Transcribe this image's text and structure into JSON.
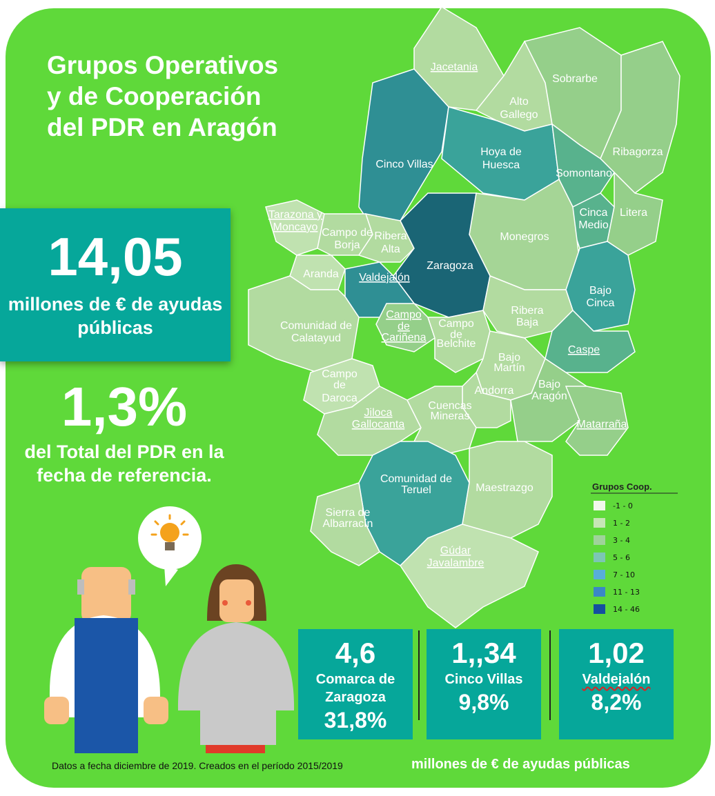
{
  "title": "Grupos Operativos y de Cooperación del PDR en Aragón",
  "stat_box": {
    "value": "14,05",
    "caption": "millones de € de ayudas públicas"
  },
  "pct_block": {
    "value": "1,3%",
    "caption": "del Total del PDR en la fecha de referencia."
  },
  "regions": [
    {
      "label": "Jacetania",
      "fill": "#b2dba0",
      "underline": true
    },
    {
      "label": "Alto Gallego",
      "fill": "#b2dba0"
    },
    {
      "label": "Sobrarbe",
      "fill": "#95cf8a"
    },
    {
      "label": "Ribagorza",
      "fill": "#95cf8a"
    },
    {
      "label": "Cinco Villas",
      "fill": "#2f8f94"
    },
    {
      "label": "Hoya de Huesca",
      "fill": "#3aa39a"
    },
    {
      "label": "Somontano",
      "fill": "#58b28d"
    },
    {
      "label": "Tarazona y Moncayo",
      "fill": "#c0e2b0",
      "underline": true
    },
    {
      "label": "Campo de Borja",
      "fill": "#b2dba0"
    },
    {
      "label": "Ribera Alta",
      "fill": "#b2dba0"
    },
    {
      "label": "Cinca Medio",
      "fill": "#58b28d"
    },
    {
      "label": "Litera",
      "fill": "#95cf8a"
    },
    {
      "label": "Monegros",
      "fill": "#a5d596"
    },
    {
      "label": "Zaragoza",
      "fill": "#1a6575"
    },
    {
      "label": "Aranda",
      "fill": "#c0e2b0"
    },
    {
      "label": "Valdejalón",
      "fill": "#2f8f94",
      "underline": true
    },
    {
      "label": "Bajo Cinca",
      "fill": "#3aa39a"
    },
    {
      "label": "Comunidad de Calatayud",
      "fill": "#b2dba0"
    },
    {
      "label": "Campo de Cariñena",
      "fill": "#95cf8a",
      "underline": true
    },
    {
      "label": "Campo de Belchite",
      "fill": "#b2dba0"
    },
    {
      "label": "Ribera Baja",
      "fill": "#b2dba0"
    },
    {
      "label": "Caspe",
      "fill": "#58b28d",
      "underline": true
    },
    {
      "label": "Bajo Martín",
      "fill": "#b2dba0"
    },
    {
      "label": "Campo de Daroca",
      "fill": "#c0e2b0"
    },
    {
      "label": "Andorra",
      "fill": "#b2dba0"
    },
    {
      "label": "Bajo Aragón",
      "fill": "#95cf8a"
    },
    {
      "label": "Jiloca Gallocanta",
      "fill": "#b2dba0",
      "underline": true
    },
    {
      "label": "Cuencas Mineras",
      "fill": "#b2dba0"
    },
    {
      "label": "Matarraña",
      "fill": "#95cf8a",
      "underline": true
    },
    {
      "label": "Comunidad de Teruel",
      "fill": "#3aa39a"
    },
    {
      "label": "Maestrazgo",
      "fill": "#b2dba0"
    },
    {
      "label": "Sierra de Albarracín",
      "fill": "#b2dba0"
    },
    {
      "label": "Gúdar Javalambre",
      "fill": "#c0e2b0",
      "underline": true
    }
  ],
  "legend": {
    "title": "Grupos Coop.",
    "items": [
      {
        "range": "-1 - 0",
        "color": "#f2f8ec"
      },
      {
        "range": "1 - 2",
        "color": "#c6e6b6"
      },
      {
        "range": "3 - 4",
        "color": "#9fd39a"
      },
      {
        "range": "5 - 6",
        "color": "#7cc6b4"
      },
      {
        "range": "7 - 10",
        "color": "#58aed8"
      },
      {
        "range": "11 - 13",
        "color": "#3a88c6"
      },
      {
        "range": "14 - 46",
        "color": "#144fa0"
      }
    ]
  },
  "kpis": [
    {
      "value": "4,6",
      "name": "Comarca de Zaragoza",
      "pct": "31,8%"
    },
    {
      "value": "1,,34",
      "name": "Cinco Villas",
      "pct": "9,8%"
    },
    {
      "value": "1,02",
      "name": "Valdejalón",
      "pct": "8,2%"
    }
  ],
  "footnote": "Datos a fecha diciembre de 2019. Creados en el período 2015/2019",
  "footer_units": "millones de € de ayudas públicas",
  "illustration": {
    "icons": [
      "lightbulb-icon",
      "farmer-figure",
      "scientist-figure"
    ],
    "colors": {
      "bulb": "#f4a21c",
      "overalls": "#1b56a8",
      "coat": "#c9c9c9",
      "shoes": "#e03a2a"
    }
  }
}
